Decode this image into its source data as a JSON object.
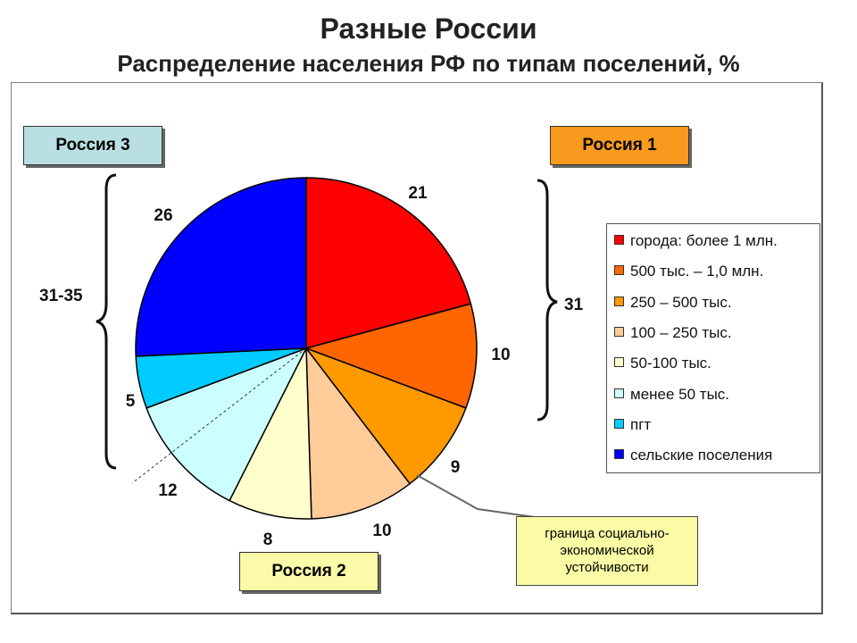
{
  "title": "Разные России",
  "subtitle": "Распределение населения РФ по типам поселений, %",
  "groups": {
    "russia3": {
      "label": "Россия 3",
      "color": "#b9dfe2",
      "range": "31-35"
    },
    "russia1": {
      "label": "Россия 1",
      "color": "#f79a1e",
      "range": "31"
    },
    "russia2": {
      "label": "Россия 2",
      "color": "#fafaa8"
    }
  },
  "note": "граница социально-экономической устойчивости",
  "chart_data": {
    "type": "pie",
    "categories": [
      "города: более 1 млн.",
      "500 тыс. – 1,0 млн.",
      "250 – 500 тыс.",
      "100 – 250 тыс.",
      "50-100 тыс.",
      "менее 50 тыс.",
      "пгт",
      "сельские поселения"
    ],
    "values": [
      21,
      10,
      9,
      10,
      8,
      12,
      5,
      26
    ],
    "colors": [
      "#ff0000",
      "#ff6600",
      "#ff9900",
      "#ffcc99",
      "#ffffcc",
      "#ccffff",
      "#00ccff",
      "#0000ff"
    ],
    "legend_position": "right"
  }
}
